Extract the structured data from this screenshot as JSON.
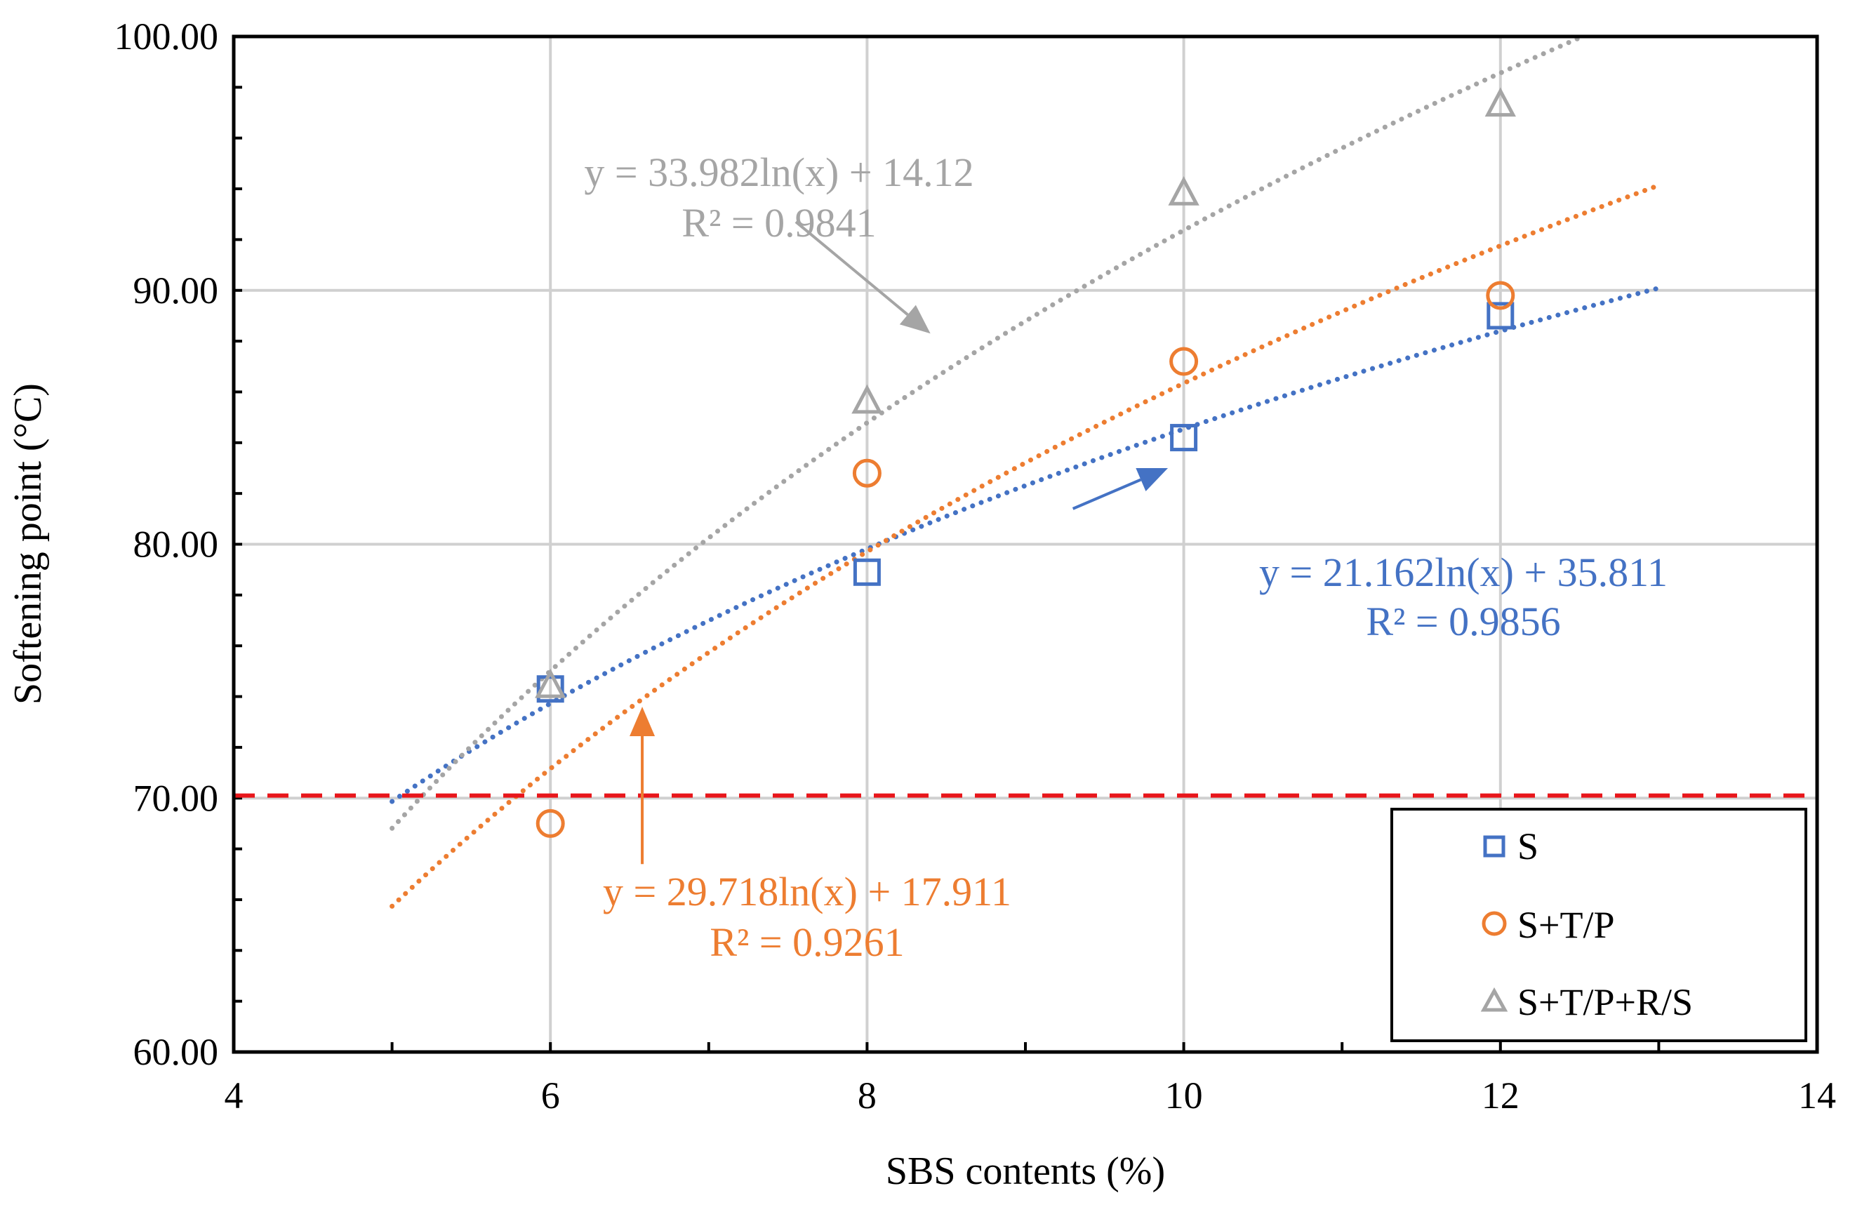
{
  "chart_data": {
    "type": "scatter",
    "title": "",
    "xlabel": "SBS contents (%)",
    "ylabel": "Softening point (°C)",
    "xlim": [
      4,
      14
    ],
    "ylim": [
      60,
      100
    ],
    "x_ticks": [
      4,
      6,
      8,
      10,
      12,
      14
    ],
    "x_tick_labels": [
      "4",
      "6",
      "8",
      "10",
      "12",
      "14"
    ],
    "y_ticks": [
      60,
      70,
      80,
      90,
      100
    ],
    "y_tick_labels": [
      "60.00",
      "70.00",
      "80.00",
      "90.00",
      "100.00"
    ],
    "grid": true,
    "reference_line": {
      "y": 70.1,
      "color": "#e8161b",
      "style": "dashed"
    },
    "legend_position": "bottom-right",
    "series": [
      {
        "name": "S",
        "marker": "square",
        "color": "#4472c4",
        "x": [
          6,
          8,
          10,
          12
        ],
        "y": [
          74.3,
          78.9,
          84.2,
          89.0
        ],
        "trend": {
          "type": "log",
          "a": 21.162,
          "b": 35.811,
          "x_range": [
            5,
            13
          ]
        },
        "equation": "y = 21.162ln(x) + 35.811",
        "r2": "R² = 0.9856",
        "arrow": {
          "from": [
            9.3,
            81.4
          ],
          "to": [
            9.9,
            83.0
          ]
        }
      },
      {
        "name": "S+T/P",
        "marker": "circle",
        "color": "#ed7d31",
        "x": [
          6,
          8,
          10,
          12
        ],
        "y": [
          69.0,
          82.8,
          87.2,
          89.8
        ],
        "trend": {
          "type": "log",
          "a": 29.718,
          "b": 17.911,
          "x_range": [
            5,
            13
          ]
        },
        "equation": "y = 29.718ln(x) + 17.911",
        "r2": "R² = 0.9261",
        "arrow": {
          "from": [
            6.58,
            67.4
          ],
          "to": [
            6.58,
            73.6
          ]
        }
      },
      {
        "name": "S+T/P+R/S",
        "marker": "triangle",
        "color": "#a5a5a5",
        "x": [
          6,
          8,
          10,
          12
        ],
        "y": [
          74.4,
          85.6,
          93.8,
          97.3
        ],
        "trend": {
          "type": "log",
          "a": 33.982,
          "b": 14.12,
          "x_range": [
            5,
            13
          ]
        },
        "equation": "y = 33.982ln(x) + 14.12",
        "r2": "R² = 0.9841",
        "arrow": {
          "from": [
            7.55,
            92.7
          ],
          "to": [
            8.4,
            88.3
          ]
        }
      }
    ]
  },
  "colors": {
    "s": "#4472c4",
    "stp": "#ed7d31",
    "stprs": "#a5a5a5",
    "reference": "#e8161b",
    "grid": "#d0d0d0",
    "axis": "#000000"
  }
}
